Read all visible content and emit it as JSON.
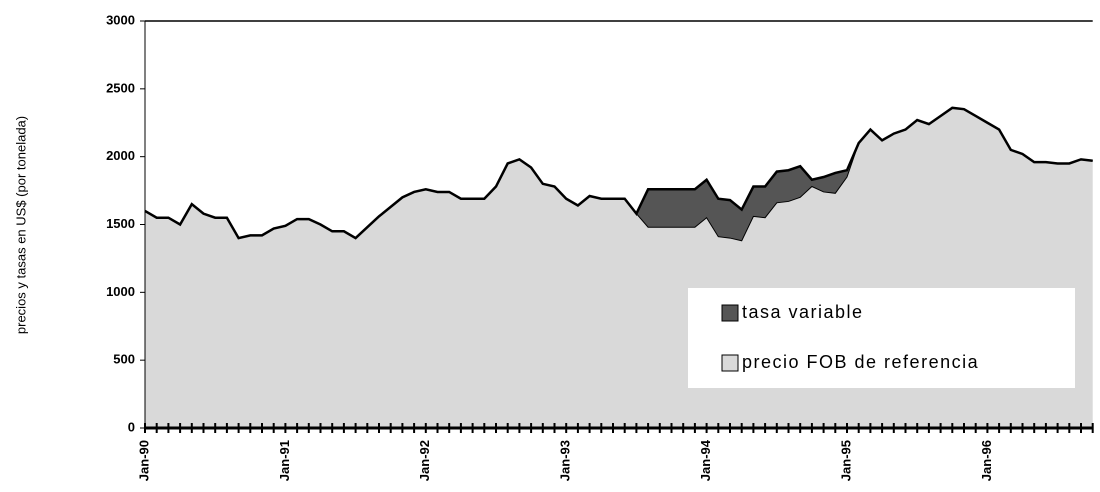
{
  "chart_data": {
    "type": "stacked-area",
    "y_label": "precios y tasas en US$ (por tonelada)",
    "categories": [
      "Jan-90",
      null,
      null,
      null,
      null,
      null,
      null,
      null,
      null,
      null,
      null,
      null,
      "Jan-91",
      null,
      null,
      null,
      null,
      null,
      null,
      null,
      null,
      null,
      null,
      null,
      "Jan-92",
      null,
      null,
      null,
      null,
      null,
      null,
      null,
      null,
      null,
      null,
      null,
      "Jan-93",
      null,
      null,
      null,
      null,
      null,
      null,
      null,
      null,
      null,
      null,
      null,
      "Jan-94",
      null,
      null,
      null,
      null,
      null,
      null,
      null,
      null,
      null,
      null,
      null,
      "Jan-95",
      null,
      null,
      null,
      null,
      null,
      null,
      null,
      null,
      null,
      null,
      null,
      "Jan-96",
      null,
      null,
      null,
      null,
      null,
      null,
      null,
      null,
      null
    ],
    "series": [
      {
        "name": "precio FOB de referencia",
        "color": "#d9d9d9",
        "values": [
          1600,
          1550,
          1550,
          1500,
          1650,
          1580,
          1550,
          1550,
          1400,
          1420,
          1420,
          1470,
          1490,
          1540,
          1540,
          1500,
          1450,
          1450,
          1400,
          1480,
          1560,
          1630,
          1700,
          1740,
          1760,
          1740,
          1740,
          1690,
          1690,
          1690,
          1780,
          1950,
          1980,
          1920,
          1800,
          1780,
          1690,
          1640,
          1710,
          1690,
          1690,
          1690,
          1580,
          1480,
          1480,
          1480,
          1480,
          1480,
          1550,
          1410,
          1400,
          1380,
          1560,
          1550,
          1660,
          1670,
          1700,
          1780,
          1740,
          1730,
          1850,
          2100,
          2200,
          2120,
          2170,
          2200,
          2270,
          2240,
          2300,
          2360,
          2350,
          2300,
          2250,
          2200,
          2050,
          2020,
          1960,
          1960,
          1950,
          1950,
          1980,
          1970
        ]
      },
      {
        "name": "tasa variable",
        "color": "#555555",
        "values": [
          0,
          0,
          0,
          0,
          0,
          0,
          0,
          0,
          0,
          0,
          0,
          0,
          0,
          0,
          0,
          0,
          0,
          0,
          0,
          0,
          0,
          0,
          0,
          0,
          0,
          0,
          0,
          0,
          0,
          0,
          0,
          0,
          0,
          0,
          0,
          0,
          0,
          0,
          0,
          0,
          0,
          0,
          0,
          280,
          280,
          280,
          280,
          280,
          280,
          280,
          280,
          230,
          220,
          230,
          230,
          230,
          230,
          50,
          110,
          150,
          50,
          0,
          0,
          0,
          0,
          0,
          0,
          0,
          0,
          0,
          0,
          0,
          0,
          0,
          0,
          0,
          0,
          0,
          0,
          0,
          0,
          0
        ]
      }
    ],
    "ylim": [
      0,
      3000
    ],
    "yticks": [
      0,
      500,
      1000,
      1500,
      2000,
      2500,
      3000
    ]
  }
}
